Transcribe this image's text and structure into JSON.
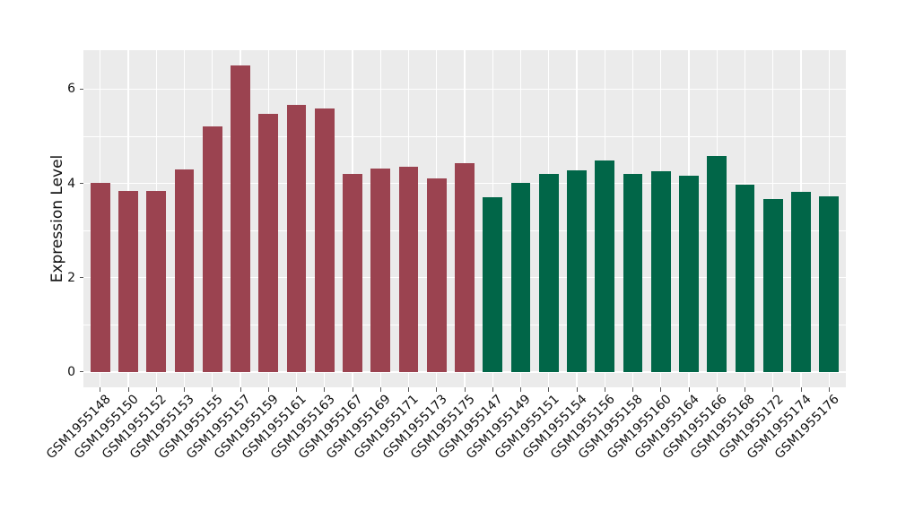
{
  "figure": {
    "background": "#FFFFFF",
    "panel_background": "#EBEBEB",
    "grid_color": "#FFFFFF",
    "tick_color": "#555555",
    "text_color": "#111111"
  },
  "chart_data": {
    "type": "bar",
    "title": "",
    "xlabel": "",
    "ylabel": "Expression Level",
    "ylim": [
      -0.325,
      6.825
    ],
    "yticks": [
      0,
      2,
      4,
      6
    ],
    "yminorticks": [
      1,
      3,
      5
    ],
    "grid": true,
    "legend": "none",
    "bar_colors": {
      "maroon": "#9B4350",
      "green": "#016648"
    },
    "bars": [
      {
        "label": "GSM1955148",
        "value": 4.01,
        "color": "maroon"
      },
      {
        "label": "GSM1955150",
        "value": 3.83,
        "color": "maroon"
      },
      {
        "label": "GSM1955152",
        "value": 3.84,
        "color": "maroon"
      },
      {
        "label": "GSM1955153",
        "value": 4.29,
        "color": "maroon"
      },
      {
        "label": "GSM1955155",
        "value": 5.21,
        "color": "maroon"
      },
      {
        "label": "GSM1955157",
        "value": 6.5,
        "color": "maroon"
      },
      {
        "label": "GSM1955159",
        "value": 5.48,
        "color": "maroon"
      },
      {
        "label": "GSM1955161",
        "value": 5.67,
        "color": "maroon"
      },
      {
        "label": "GSM1955163",
        "value": 5.59,
        "color": "maroon"
      },
      {
        "label": "GSM1955167",
        "value": 4.2,
        "color": "maroon"
      },
      {
        "label": "GSM1955169",
        "value": 4.31,
        "color": "maroon"
      },
      {
        "label": "GSM1955171",
        "value": 4.35,
        "color": "maroon"
      },
      {
        "label": "GSM1955173",
        "value": 4.1,
        "color": "maroon"
      },
      {
        "label": "GSM1955175",
        "value": 4.43,
        "color": "maroon"
      },
      {
        "label": "GSM1955147",
        "value": 3.71,
        "color": "green"
      },
      {
        "label": "GSM1955149",
        "value": 4.01,
        "color": "green"
      },
      {
        "label": "GSM1955151",
        "value": 4.2,
        "color": "green"
      },
      {
        "label": "GSM1955154",
        "value": 4.27,
        "color": "green"
      },
      {
        "label": "GSM1955156",
        "value": 4.48,
        "color": "green"
      },
      {
        "label": "GSM1955158",
        "value": 4.21,
        "color": "green"
      },
      {
        "label": "GSM1955160",
        "value": 4.25,
        "color": "green"
      },
      {
        "label": "GSM1955164",
        "value": 4.17,
        "color": "green"
      },
      {
        "label": "GSM1955166",
        "value": 4.59,
        "color": "green"
      },
      {
        "label": "GSM1955168",
        "value": 3.98,
        "color": "green"
      },
      {
        "label": "GSM1955172",
        "value": 3.66,
        "color": "green"
      },
      {
        "label": "GSM1955174",
        "value": 3.82,
        "color": "green"
      },
      {
        "label": "GSM1955176",
        "value": 3.73,
        "color": "green"
      }
    ]
  }
}
